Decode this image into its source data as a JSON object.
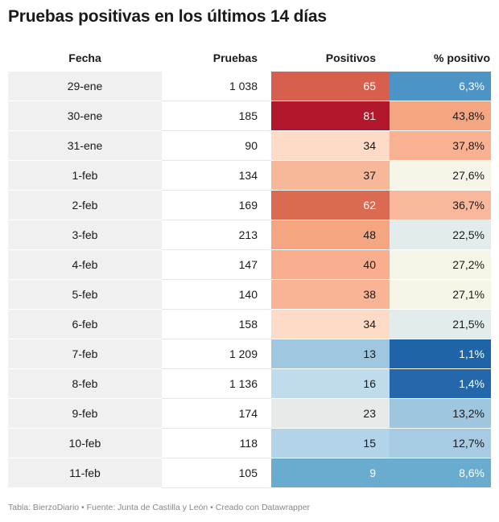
{
  "title": "Pruebas positivas en los últimos 14 días",
  "footer": "Tabla: BierzoDiario • Fuente: Junta de Castilla y León • Creado con Datawrapper",
  "chart_data": {
    "type": "table",
    "columns": [
      "Fecha",
      "Pruebas",
      "Positivos",
      "% positivo"
    ],
    "rows": [
      {
        "fecha": "29-ene",
        "pruebas": "1 038",
        "positivos": "65",
        "pct": "6,3%"
      },
      {
        "fecha": "30-ene",
        "pruebas": "185",
        "positivos": "81",
        "pct": "43,8%"
      },
      {
        "fecha": "31-ene",
        "pruebas": "90",
        "positivos": "34",
        "pct": "37,8%"
      },
      {
        "fecha": "1-feb",
        "pruebas": "134",
        "positivos": "37",
        "pct": "27,6%"
      },
      {
        "fecha": "2-feb",
        "pruebas": "169",
        "positivos": "62",
        "pct": "36,7%"
      },
      {
        "fecha": "3-feb",
        "pruebas": "213",
        "positivos": "48",
        "pct": "22,5%"
      },
      {
        "fecha": "4-feb",
        "pruebas": "147",
        "positivos": "40",
        "pct": "27,2%"
      },
      {
        "fecha": "5-feb",
        "pruebas": "140",
        "positivos": "38",
        "pct": "27,1%"
      },
      {
        "fecha": "6-feb",
        "pruebas": "158",
        "positivos": "34",
        "pct": "21,5%"
      },
      {
        "fecha": "7-feb",
        "pruebas": "1 209",
        "positivos": "13",
        "pct": "1,1%"
      },
      {
        "fecha": "8-feb",
        "pruebas": "1 136",
        "positivos": "16",
        "pct": "1,4%"
      },
      {
        "fecha": "9-feb",
        "pruebas": "174",
        "positivos": "23",
        "pct": "13,2%"
      },
      {
        "fecha": "10-feb",
        "pruebas": "118",
        "positivos": "15",
        "pct": "12,7%"
      },
      {
        "fecha": "11-feb",
        "pruebas": "105",
        "positivos": "9",
        "pct": "8,6%"
      }
    ],
    "positivos_colors": [
      "#d6604d",
      "#b2182b",
      "#fddbc7",
      "#f7b799",
      "#db6a53",
      "#f4a582",
      "#f9ae8f",
      "#f9b395",
      "#fddbc7",
      "#a0c7e0",
      "#c0dbeb",
      "#e6ebe9",
      "#b3d4e8",
      "#6aacd0"
    ],
    "pct_colors": [
      "#4d94c6",
      "#f4a582",
      "#f8b191",
      "#f7f4e8",
      "#f9b89b",
      "#e3ecec",
      "#f7f4e8",
      "#f7f4e8",
      "#e3ecec",
      "#1f64a8",
      "#2467ab",
      "#9ec6df",
      "#a7cbe2",
      "#6aacd0"
    ],
    "white_text_positivos": [
      true,
      true,
      false,
      false,
      true,
      false,
      false,
      false,
      false,
      false,
      false,
      false,
      false,
      true
    ],
    "white_text_pct": [
      true,
      false,
      false,
      false,
      false,
      false,
      false,
      false,
      false,
      true,
      true,
      false,
      false,
      true
    ]
  }
}
